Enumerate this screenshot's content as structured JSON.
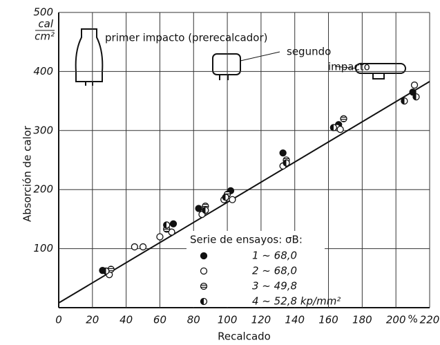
{
  "chart_data": {
    "type": "scatter",
    "xlabel": "Recalcado",
    "ylabel": "Absorción de calor",
    "y_unit": {
      "numerator": "cal",
      "denominator": "cm²"
    },
    "x_unit": "%",
    "xlim": [
      0,
      220
    ],
    "ylim": [
      0,
      500
    ],
    "xticks": [
      0,
      20,
      40,
      60,
      80,
      100,
      120,
      140,
      160,
      180,
      200,
      220
    ],
    "yticks": [
      100,
      200,
      300,
      400,
      500
    ],
    "grid": true,
    "legend_title": "Serie de ensayos: σB:",
    "annotations": [
      {
        "text": "primer impacto (prerecalcador)"
      },
      {
        "lines": [
          "segundo",
          "impacto"
        ]
      }
    ],
    "trend_line": {
      "x": [
        0,
        220
      ],
      "values": [
        8,
        383
      ],
      "color": "#111"
    },
    "series": [
      {
        "name": "1  ~ 68,0",
        "marker": "filled",
        "color": "#111",
        "x": [
          26,
          68,
          83,
          102,
          133,
          166,
          210
        ],
        "values": [
          63,
          142,
          168,
          198,
          262,
          310,
          365
        ]
      },
      {
        "name": "2  ~ 68,0",
        "marker": "open",
        "color": "#111",
        "x": [
          30,
          45,
          50,
          60,
          67,
          85,
          98,
          103,
          133,
          165,
          167,
          211
        ],
        "values": [
          56,
          103,
          103,
          120,
          128,
          158,
          183,
          183,
          240,
          305,
          302,
          377
        ]
      },
      {
        "name": "3  ~ 49,8",
        "marker": "hatched",
        "color": "#111",
        "x": [
          31,
          64,
          87,
          100,
          135,
          169
        ],
        "values": [
          65,
          133,
          172,
          192,
          250,
          320
        ]
      },
      {
        "name": "4  ~ 52,8 kp/mm²",
        "marker": "half",
        "color": "#111",
        "x": [
          28,
          64,
          87,
          99,
          135,
          163,
          205,
          212
        ],
        "values": [
          62,
          140,
          165,
          187,
          245,
          305,
          350,
          357
        ]
      }
    ]
  }
}
